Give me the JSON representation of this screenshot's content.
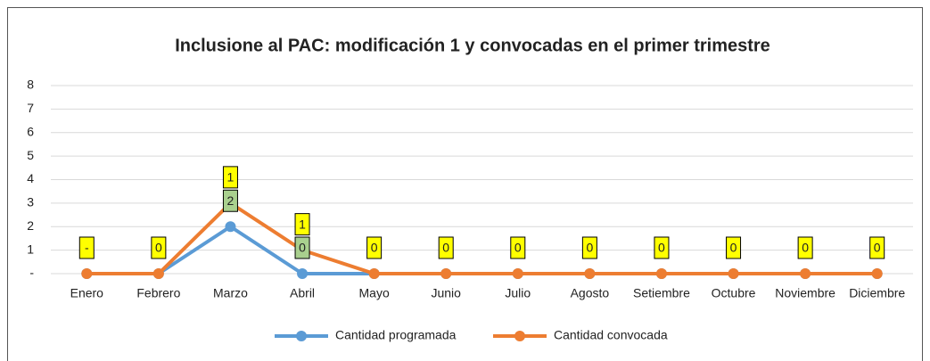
{
  "chart_data": {
    "type": "line",
    "stacked": true,
    "title": "Inclusione al PAC: modificación 1 y convocadas en el primer trimestre",
    "categories": [
      "Enero",
      "Febrero",
      "Marzo",
      "Abril",
      "Mayo",
      "Junio",
      "Julio",
      "Agosto",
      "Setiembre",
      "Octubre",
      "Noviembre",
      "Diciembre"
    ],
    "series": [
      {
        "name": "Cantidad programada",
        "color": "#5b9bd5",
        "values": [
          0,
          0,
          2,
          0,
          0,
          0,
          0,
          0,
          0,
          0,
          0,
          0
        ],
        "value_labels": [
          null,
          null,
          "2",
          "0",
          null,
          null,
          null,
          null,
          null,
          null,
          null,
          null
        ],
        "label_color": "#a9d08e"
      },
      {
        "name": "Cantidad convocada",
        "color": "#ed7d31",
        "values": [
          0,
          0,
          1,
          1,
          0,
          0,
          0,
          0,
          0,
          0,
          0,
          0
        ],
        "value_labels": [
          "-",
          "0",
          "1",
          "1",
          "0",
          "0",
          "0",
          "0",
          "0",
          "0",
          "0",
          "0"
        ],
        "label_color": "#ffff00"
      }
    ],
    "ylim": [
      0,
      8
    ],
    "yticks": [
      {
        "value": 0,
        "label": "-"
      },
      1,
      2,
      3,
      4,
      5,
      6,
      7,
      8
    ],
    "grid": true,
    "legend": "bottom"
  }
}
